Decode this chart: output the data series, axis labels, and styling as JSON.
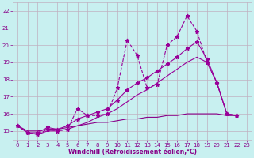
{
  "xlabel": "Windchill (Refroidissement éolien,°C)",
  "background_color": "#c8f0f0",
  "grid_color": "#c0b0c0",
  "line_color": "#990099",
  "line_color2": "#880088",
  "xlim": [
    -0.5,
    23.5
  ],
  "ylim": [
    14.5,
    22.5
  ],
  "xticks": [
    0,
    1,
    2,
    3,
    4,
    5,
    6,
    7,
    8,
    9,
    10,
    11,
    12,
    13,
    14,
    15,
    16,
    17,
    18,
    19,
    20,
    21,
    22,
    23
  ],
  "yticks": [
    15,
    16,
    17,
    18,
    19,
    20,
    21,
    22
  ],
  "s0x": [
    0,
    1,
    2,
    3,
    4,
    5,
    6,
    7,
    8,
    9,
    10,
    11,
    12,
    13,
    14,
    15,
    16,
    17,
    18,
    19,
    20,
    21,
    22
  ],
  "s0y": [
    15.3,
    14.9,
    14.8,
    15.1,
    15.0,
    15.1,
    16.3,
    15.9,
    15.9,
    16.0,
    17.5,
    20.3,
    19.4,
    17.5,
    17.7,
    20.0,
    20.5,
    21.7,
    20.8,
    19.0,
    17.8,
    16.0,
    15.9
  ],
  "s1x": [
    0,
    1,
    2,
    3,
    4,
    5,
    6,
    7,
    8,
    9,
    10,
    11,
    12,
    13,
    14,
    15,
    16,
    17,
    18,
    19,
    20,
    21,
    22
  ],
  "s1y": [
    15.3,
    14.9,
    14.8,
    15.0,
    15.0,
    15.1,
    15.3,
    15.5,
    15.8,
    16.0,
    16.3,
    16.7,
    17.1,
    17.4,
    17.8,
    18.2,
    18.6,
    19.0,
    19.3,
    19.0,
    17.8,
    16.0,
    15.9
  ],
  "s2x": [
    0,
    1,
    2,
    3,
    4,
    5,
    6,
    7,
    8,
    9,
    10,
    11,
    12,
    13,
    14,
    15,
    16,
    17,
    18,
    19,
    20,
    21,
    22
  ],
  "s2y": [
    15.3,
    14.9,
    14.9,
    15.2,
    15.1,
    15.3,
    15.7,
    15.9,
    16.1,
    16.3,
    16.8,
    17.4,
    17.8,
    18.1,
    18.5,
    18.9,
    19.3,
    19.8,
    20.2,
    19.2,
    17.8,
    16.0,
    15.9
  ],
  "s3x": [
    0,
    1,
    2,
    3,
    4,
    5,
    6,
    7,
    8,
    9,
    10,
    11,
    12,
    13,
    14,
    15,
    16,
    17,
    18,
    19,
    20,
    21,
    22
  ],
  "s3y": [
    15.3,
    15.0,
    15.0,
    15.1,
    15.1,
    15.2,
    15.3,
    15.4,
    15.5,
    15.5,
    15.6,
    15.7,
    15.7,
    15.8,
    15.8,
    15.9,
    15.9,
    16.0,
    16.0,
    16.0,
    16.0,
    15.9,
    15.9
  ]
}
